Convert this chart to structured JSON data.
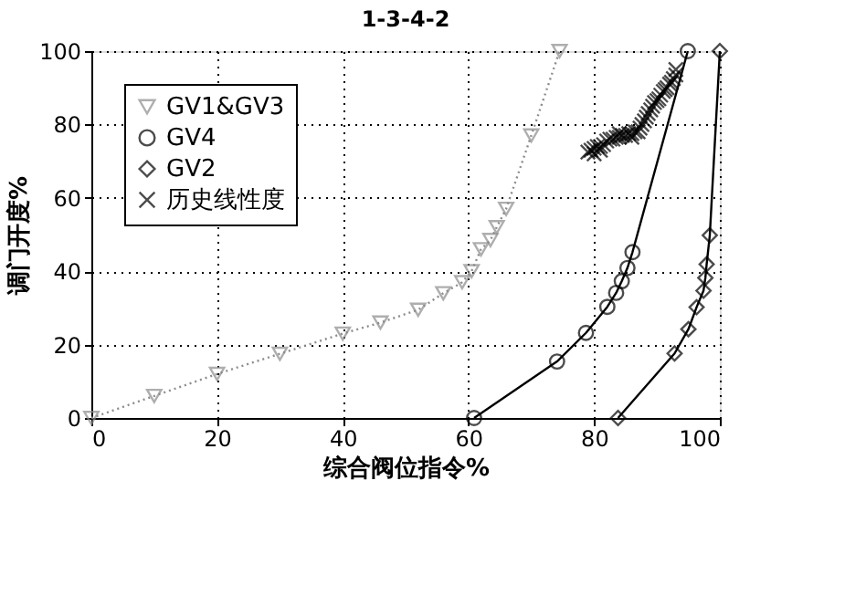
{
  "chart_data": {
    "type": "line",
    "title": "1-3-4-2",
    "xlabel": "综合阀位指令%",
    "ylabel": "调门开度%",
    "xlim": [
      0,
      100
    ],
    "ylim": [
      0,
      100
    ],
    "xticks": [
      0,
      20,
      40,
      60,
      80,
      100
    ],
    "yticks": [
      0,
      20,
      40,
      60,
      80,
      100
    ],
    "grid": true,
    "legend": "top left",
    "series": [
      {
        "name": "GV1&GV3",
        "color": "#8c8c8c",
        "marker": "triangle",
        "line_style": "dotted",
        "x": [
          0,
          10,
          20,
          30,
          40,
          46,
          52,
          56,
          59,
          60.5,
          62,
          63.5,
          64.5,
          66,
          70,
          74.5
        ],
        "values": [
          0,
          6,
          12,
          17.5,
          23,
          26,
          29.5,
          34,
          37,
          40,
          46,
          48.5,
          52,
          57,
          77,
          100
        ]
      },
      {
        "name": "GV4",
        "color": "#000000",
        "marker": "circle",
        "line_style": "solid",
        "x": [
          60.9,
          74.1,
          78.7,
          82.1,
          83.5,
          84.4,
          85.3,
          86.1,
          94.9
        ],
        "values": [
          0,
          15.4,
          23.2,
          30.3,
          34.1,
          37.3,
          40.9,
          45.2,
          100
        ]
      },
      {
        "name": "GV2",
        "color": "#000000",
        "marker": "diamond",
        "line_style": "solid",
        "x": [
          83.8,
          92.8,
          95.0,
          96.3,
          97.4,
          97.7,
          97.9,
          98.4,
          100
        ],
        "values": [
          0,
          17.6,
          24.2,
          30.2,
          34.7,
          38.2,
          41.9,
          49.8,
          100
        ]
      },
      {
        "name": "历史线性度",
        "type": "scatter",
        "color": "#000000",
        "marker": "cross",
        "x": [
          79,
          79.5,
          80,
          80.5,
          81,
          81.5,
          82,
          82.5,
          83,
          83.5,
          84,
          84.5,
          85,
          85.5,
          86,
          86.5,
          87,
          87.3,
          87.6,
          88,
          88.3,
          88.6,
          89,
          89.3,
          89.6,
          90,
          90.3,
          90.6,
          91,
          91.3,
          91.6,
          92,
          92.3,
          92.6,
          93,
          93,
          80,
          81,
          84,
          86
        ],
        "values": [
          72.5,
          73,
          73.5,
          74,
          74,
          74.5,
          75.5,
          76,
          76,
          76.5,
          76.5,
          77,
          77,
          77.5,
          77.5,
          78,
          78,
          79,
          80,
          81,
          82,
          83,
          84,
          85,
          86,
          86.5,
          87,
          88,
          89,
          89.5,
          90,
          91,
          91.5,
          92.5,
          93.5,
          95,
          72,
          73,
          77.5,
          76.5
        ]
      }
    ]
  }
}
